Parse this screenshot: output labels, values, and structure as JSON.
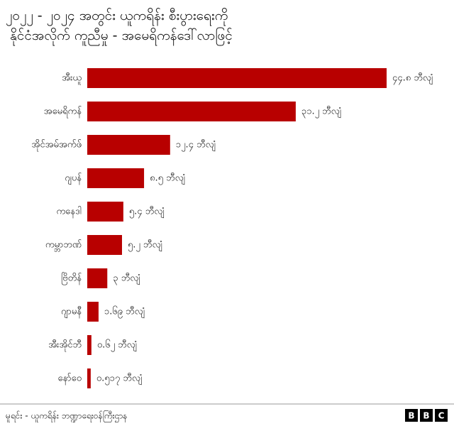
{
  "chart_data": {
    "type": "bar",
    "orientation": "horizontal",
    "title": "၂၀၂၂ - ၂၀၂၄ အတွင်း ယူကရိန်း စီးပွားရေးကို နိုင်ငံအလိုက် ကူညီမှု - အမေရိကန်ဒေါ်လာဖြင့်",
    "categories": [
      "အီးယူ",
      "အမေရိကန်",
      "အိုင်အမ်အက်ဖ်",
      "ဂျပန်",
      "ကနေဒါ",
      "ကမ္ဘာဘဏ်",
      "ဗြိတိန်",
      "ဂျာမနီ",
      "အီးအိုင်ဘီ",
      "နော်ဝေ"
    ],
    "values": [
      44.8,
      31.2,
      12.4,
      8.5,
      5.4,
      5.2,
      3,
      1.69,
      0.62,
      0.517
    ],
    "value_labels": [
      "၄၄.၈ ဘီလျံ",
      "၃၁.၂ ဘီလျံ",
      "၁၂.၄ ဘီလျံ",
      "၈.၅ ဘီလျံ",
      "၅.၄ ဘီလျံ",
      "၅.၂ ဘီလျံ",
      "၃ ဘီလျံ",
      "၁.၆၉ ဘီလျံ",
      "၀.၆၂ ဘီလျံ",
      "၀.၅၁၇ ဘီလျံ"
    ],
    "color": "#b80000",
    "source": "မူရင်း - ယူကရိန်း ဘဏ္ဍာရေးဝန်ကြီးဌာန",
    "logo": [
      "B",
      "B",
      "C"
    ]
  }
}
